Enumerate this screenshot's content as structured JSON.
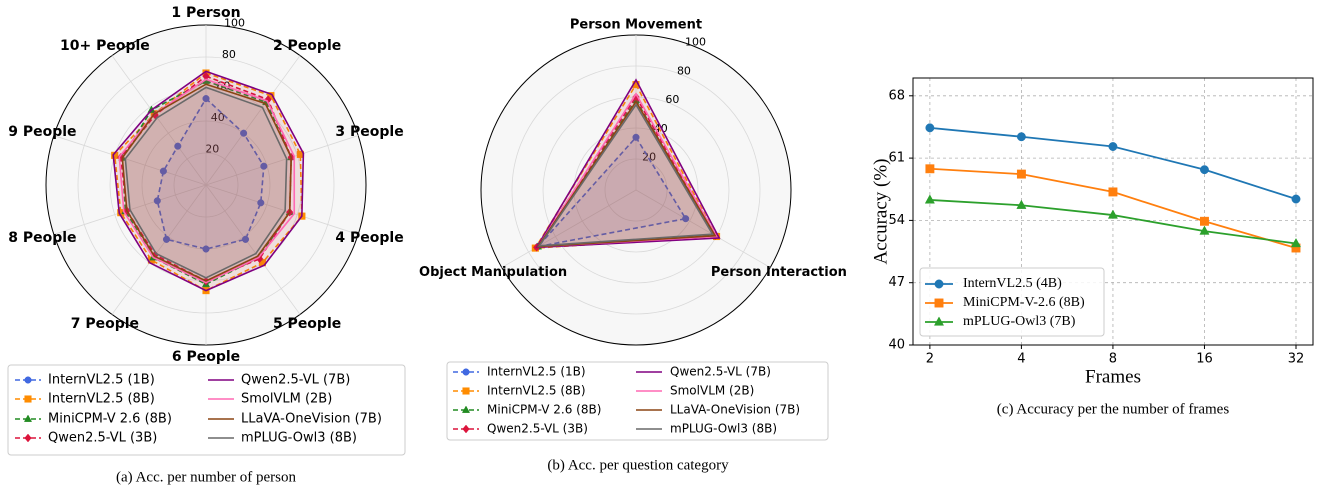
{
  "chart_data": [
    {
      "type": "radar",
      "caption": "(a) Acc. per number of person",
      "categories": [
        "1 Person",
        "2 People",
        "3 People",
        "4 People",
        "5 People",
        "6 People",
        "7 People",
        "8 People",
        "9 People",
        "10+ People"
      ],
      "rlim": [
        0,
        100
      ],
      "rticks": [
        20,
        40,
        60,
        80,
        100
      ],
      "series": [
        {
          "name": "InternVL2.5 (1B)",
          "color": "#4169e1",
          "linestyle": "dashed",
          "marker": "circle",
          "values": [
            54,
            40,
            38,
            36,
            42,
            40,
            42,
            32,
            28,
            30
          ]
        },
        {
          "name": "InternVL2.5 (8B)",
          "color": "#ff8c00",
          "linestyle": "dashed",
          "marker": "square",
          "values": [
            70,
            69,
            62,
            63,
            60,
            66,
            58,
            56,
            60,
            55
          ]
        },
        {
          "name": "MiniCPM-V 2.6 (8B)",
          "color": "#228b22",
          "linestyle": "dashed",
          "marker": "triangle",
          "values": [
            65,
            64,
            56,
            55,
            56,
            62,
            56,
            53,
            55,
            58
          ]
        },
        {
          "name": "Qwen2.5-VL (3B)",
          "color": "#dc143c",
          "linestyle": "dashed",
          "marker": "diamond",
          "values": [
            68,
            66,
            56,
            55,
            57,
            60,
            54,
            52,
            56,
            54
          ]
        },
        {
          "name": "Qwen2.5-VL (7B)",
          "color": "#800080",
          "linestyle": "solid",
          "values": [
            71,
            70,
            64,
            63,
            62,
            66,
            60,
            57,
            61,
            58
          ]
        },
        {
          "name": "SmolVLM (2B)",
          "color": "#ff69b4",
          "linestyle": "solid",
          "values": [
            66,
            65,
            58,
            58,
            56,
            61,
            56,
            54,
            57,
            55
          ]
        },
        {
          "name": "LLaVA-OneVision (7B)",
          "color": "#8b4513",
          "linestyle": "solid",
          "values": [
            63,
            63,
            56,
            55,
            55,
            60,
            55,
            52,
            55,
            55
          ]
        },
        {
          "name": "mPLUG-Owl3 (8B)",
          "color": "#696969",
          "linestyle": "solid",
          "values": [
            61,
            60,
            53,
            52,
            53,
            58,
            53,
            50,
            53,
            52
          ]
        }
      ]
    },
    {
      "type": "radar",
      "caption": "(b) Acc. per question category",
      "categories": [
        "Person Movement",
        "Person Interaction",
        "Object Manipulation"
      ],
      "rlim": [
        0,
        100
      ],
      "rticks": [
        20,
        40,
        60,
        80,
        100
      ],
      "series": [
        {
          "name": "InternVL2.5 (1B)",
          "color": "#4169e1",
          "linestyle": "dashed",
          "marker": "circle",
          "values": [
            34,
            37,
            73
          ]
        },
        {
          "name": "InternVL2.5 (8B)",
          "color": "#ff8c00",
          "linestyle": "dashed",
          "marker": "square",
          "values": [
            68,
            60,
            75
          ]
        },
        {
          "name": "MiniCPM-V 2.6 (8B)",
          "color": "#228b22",
          "linestyle": "dashed",
          "marker": "triangle",
          "values": [
            58,
            58,
            73
          ]
        },
        {
          "name": "Qwen2.5-VL (3B)",
          "color": "#dc143c",
          "linestyle": "dashed",
          "marker": "diamond",
          "values": [
            60,
            59,
            74
          ]
        },
        {
          "name": "Qwen2.5-VL (7B)",
          "color": "#800080",
          "linestyle": "solid",
          "values": [
            71,
            62,
            74
          ]
        },
        {
          "name": "SmolVLM (2B)",
          "color": "#ff69b4",
          "linestyle": "solid",
          "values": [
            62,
            60,
            73
          ]
        },
        {
          "name": "LLaVA-OneVision (7B)",
          "color": "#8b4513",
          "linestyle": "solid",
          "values": [
            57,
            59,
            73
          ]
        },
        {
          "name": "mPLUG-Owl3 (8B)",
          "color": "#696969",
          "linestyle": "solid",
          "values": [
            55,
            57,
            72
          ]
        }
      ]
    },
    {
      "type": "line",
      "caption": "(c) Accuracy per the number of frames",
      "x_label": "Frames",
      "y_label": "Accuracy (%)",
      "x": [
        2,
        4,
        8,
        16,
        32
      ],
      "xscale": "log",
      "xlim": [
        1.76,
        36.4
      ],
      "xticks": [
        2,
        4,
        8,
        16,
        32
      ],
      "ylim": [
        40,
        70
      ],
      "yticks": [
        40,
        47,
        54,
        61,
        68
      ],
      "grid": true,
      "legend": "lower left",
      "series": [
        {
          "name": "InternVL2.5 (4B)",
          "color": "#1f77b4",
          "marker": "circle",
          "values": [
            64.4,
            63.4,
            62.3,
            59.7,
            56.4
          ]
        },
        {
          "name": "MiniCPM-V-2.6 (8B)",
          "color": "#ff7f0e",
          "marker": "square",
          "values": [
            59.8,
            59.2,
            57.2,
            53.9,
            50.9
          ]
        },
        {
          "name": "mPLUG-Owl3 (7B)",
          "color": "#2ca02c",
          "marker": "triangle",
          "values": [
            56.3,
            55.7,
            54.6,
            52.8,
            51.4
          ]
        }
      ]
    }
  ]
}
